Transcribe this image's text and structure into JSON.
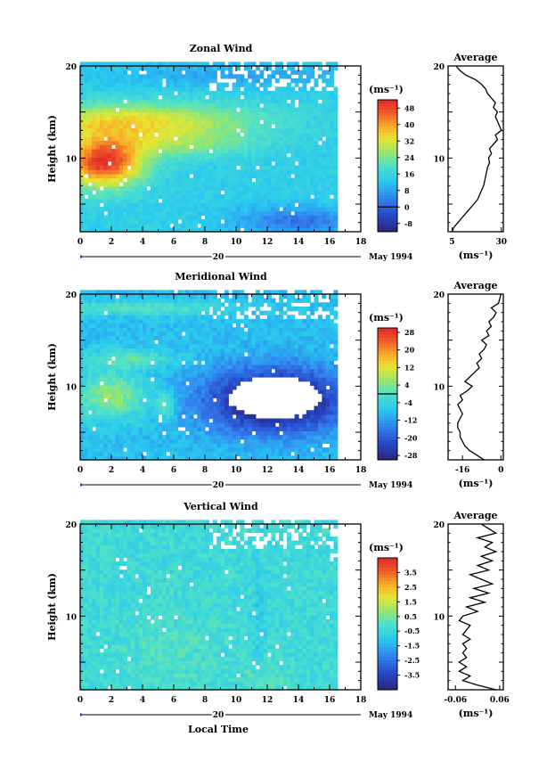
{
  "figure": {
    "xlabel": "Local Time"
  },
  "chart_data": [
    {
      "type": "heatmap",
      "title": "Zonal Wind",
      "ylabel": "Height (km)",
      "unit_label": "(ms⁻¹)",
      "date_label": "May 1994",
      "day_label": "20",
      "xlim": [
        0,
        18
      ],
      "ylim": [
        2,
        20
      ],
      "xticks": [
        0,
        2,
        4,
        6,
        8,
        10,
        12,
        14,
        16,
        18
      ],
      "yticks": [
        10,
        20
      ],
      "data_xmax": 16.3,
      "colorbar": {
        "min": -12,
        "max": 52,
        "labels": [
          "48",
          "40",
          "32",
          "24",
          "16",
          "8",
          "0",
          "-8"
        ],
        "values": [
          48,
          40,
          32,
          24,
          16,
          8,
          0,
          -8
        ],
        "contour": 0
      },
      "field_description_values": {
        "jet_core": {
          "x": 1.5,
          "y": 9.5,
          "value": 48
        },
        "upper_layer": {
          "y": 14,
          "value": 32
        },
        "lower_east": {
          "y": 4,
          "value": 6
        }
      },
      "profile": {
        "title": "Average",
        "xlabel": "(ms⁻¹)",
        "xlim": [
          3,
          31
        ],
        "xticks": [
          5,
          30
        ],
        "yticks": [
          10,
          20
        ],
        "heights": [
          2,
          2.5,
          3,
          3.5,
          4,
          4.5,
          5,
          5.5,
          6,
          6.5,
          7,
          7.5,
          8,
          8.5,
          9,
          9.5,
          10,
          10.5,
          11,
          11.5,
          12,
          12.5,
          13,
          13.5,
          14,
          14.5,
          15,
          15.5,
          16,
          16.5,
          17,
          17.5,
          18,
          18.5,
          19,
          19.5,
          20
        ],
        "values": [
          5,
          6,
          8,
          10,
          12,
          14,
          16,
          18,
          19,
          20,
          21,
          21.5,
          22,
          22.5,
          23,
          24,
          23.5,
          25,
          24,
          26,
          28,
          27,
          30,
          29,
          28,
          27,
          28,
          26,
          27,
          25,
          23,
          22,
          20,
          17,
          12,
          9,
          7
        ]
      }
    },
    {
      "type": "heatmap",
      "title": "Meridional Wind",
      "ylabel": "Height (km)",
      "unit_label": "(ms⁻¹)",
      "date_label": "May 1994",
      "day_label": "20",
      "xlim": [
        0,
        18
      ],
      "ylim": [
        2,
        20
      ],
      "xticks": [
        0,
        2,
        4,
        6,
        8,
        10,
        12,
        14,
        16,
        18
      ],
      "yticks": [
        10,
        20
      ],
      "data_xmax": 16.3,
      "colorbar": {
        "min": -30,
        "max": 30,
        "labels": [
          "28",
          "20",
          "12",
          "4",
          "-4",
          "-12",
          "-20",
          "-28"
        ],
        "values": [
          28,
          20,
          12,
          4,
          -4,
          -12,
          -20,
          -28
        ],
        "contour": 0
      },
      "field_description_values": {
        "southerly_core": {
          "x": 12,
          "y": 8.5,
          "value": -28
        },
        "northerly_patch": {
          "x": 2,
          "y": 9,
          "value": 6
        }
      },
      "profile": {
        "title": "Average",
        "xlabel": "(ms⁻¹)",
        "xlim": [
          -22,
          1
        ],
        "xticks": [
          -16,
          0
        ],
        "yticks": [
          10,
          20
        ],
        "heights": [
          2,
          2.5,
          3,
          3.5,
          4,
          4.5,
          5,
          5.5,
          6,
          6.5,
          7,
          7.5,
          8,
          8.5,
          9,
          9.5,
          10,
          10.5,
          11,
          11.5,
          12,
          12.5,
          13,
          13.5,
          14,
          14.5,
          15,
          15.5,
          16,
          16.5,
          17,
          17.5,
          18,
          18.5,
          19,
          19.5,
          20
        ],
        "values": [
          -7,
          -10,
          -13,
          -15,
          -16,
          -17,
          -17,
          -18,
          -18,
          -17,
          -16,
          -17,
          -18,
          -16,
          -17,
          -14,
          -12,
          -15,
          -13,
          -11,
          -9,
          -10,
          -8,
          -9,
          -7,
          -6,
          -8,
          -5,
          -6,
          -4,
          -5,
          -3,
          -2,
          -4,
          -1,
          -0.5,
          0
        ]
      }
    },
    {
      "type": "heatmap",
      "title": "Vertical Wind",
      "ylabel": "Height (km)",
      "unit_label": "(ms⁻¹)",
      "date_label": "May 1994",
      "day_label": "20",
      "xlim": [
        0,
        18
      ],
      "ylim": [
        2,
        20
      ],
      "xticks": [
        0,
        2,
        4,
        6,
        8,
        10,
        12,
        14,
        16,
        18
      ],
      "yticks": [
        10,
        20
      ],
      "data_xmax": 16.3,
      "colorbar": {
        "min": -4.5,
        "max": 4.5,
        "labels": [
          "3.5",
          "2.5",
          "1.5",
          "0.5",
          "-0.5",
          "-1.5",
          "-2.5",
          "-3.5"
        ],
        "values": [
          3.5,
          2.5,
          1.5,
          0.5,
          -0.5,
          -1.5,
          -2.5,
          -3.5
        ],
        "contour": null
      },
      "field_description_values": {
        "background": {
          "value": -0.3
        }
      },
      "profile": {
        "title": "Average",
        "xlabel": "(ms⁻¹)",
        "xlim": [
          -0.08,
          0.07
        ],
        "xticks": [
          -0.06,
          0.06
        ],
        "xtick_labels": [
          "-0.06",
          "0.06"
        ],
        "yticks": [
          10,
          20
        ],
        "heights": [
          2,
          2.5,
          3,
          3.5,
          4,
          4.5,
          5,
          5.5,
          6,
          6.5,
          7,
          7.5,
          8,
          8.5,
          9,
          9.5,
          10,
          10.5,
          11,
          11.5,
          12,
          12.5,
          13,
          13.5,
          14,
          14.5,
          15,
          15.5,
          16,
          16.5,
          17,
          17.5,
          18,
          18.5,
          19,
          19.5,
          20
        ],
        "values": [
          0.05,
          0.0,
          -0.04,
          -0.02,
          -0.05,
          -0.03,
          -0.05,
          -0.03,
          -0.04,
          -0.03,
          -0.04,
          -0.02,
          -0.04,
          -0.03,
          -0.02,
          -0.05,
          -0.04,
          0.0,
          -0.03,
          0.02,
          -0.02,
          0.03,
          -0.01,
          0.04,
          0.01,
          -0.02,
          0.03,
          0.0,
          0.04,
          0.01,
          0.05,
          0.02,
          0.04,
          0.0,
          0.05,
          0.03,
          0.01
        ]
      }
    }
  ]
}
